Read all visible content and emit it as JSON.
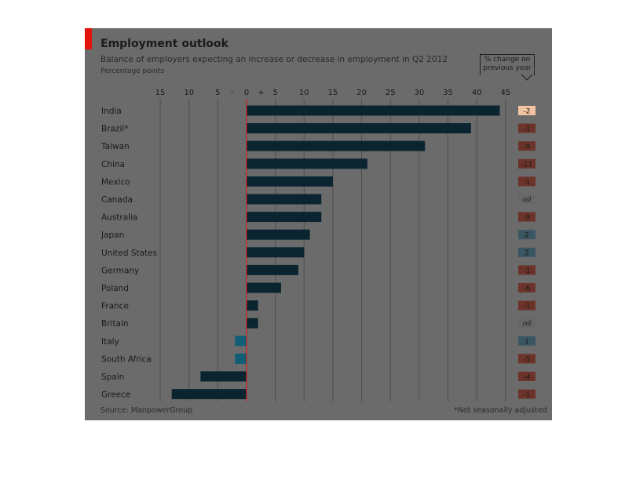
{
  "header": {
    "title": "Employment outlook",
    "subtitle": "Balance of employers expecting an increase or decrease in employment in Q2 2012",
    "unit": "Percentage points",
    "change_label": "% change on previous year"
  },
  "footer": {
    "source": "Source: ManpowerGroup",
    "footnote": "*Not seasonally adjusted"
  },
  "colors": {
    "panel": "#6b6b6b",
    "bar": "#0b2530",
    "bar_negative_highlight": "#0f5e76",
    "accent_red": "#e3120b",
    "badge_negative": "#6b3329",
    "badge_negative_highlight": "#f1c3a0",
    "badge_positive": "#3a5663",
    "badge_nil": "#676767"
  },
  "chart_data": {
    "type": "bar",
    "orientation": "horizontal",
    "xlim": [
      -15,
      45
    ],
    "x_ticks": [
      "15",
      "10",
      "5",
      "-",
      "0",
      "+",
      "5",
      "10",
      "15",
      "20",
      "25",
      "30",
      "35",
      "40",
      "45"
    ],
    "grid": true,
    "categories": [
      "India",
      "Brazil*",
      "Taiwan",
      "China",
      "Mexico",
      "Canada",
      "Australia",
      "Japan",
      "United States",
      "Germany",
      "Poland",
      "France",
      "Britain",
      "Italy",
      "South Africa",
      "Spain",
      "Greece"
    ],
    "values": [
      44,
      39,
      31,
      21,
      15,
      13,
      13,
      11,
      10,
      9,
      6,
      2,
      2,
      -2,
      -2,
      -8,
      -13
    ],
    "change_on_previous_year": [
      "-2",
      "-1",
      "-9",
      "-11",
      "-1",
      "nil",
      "-9",
      "2",
      "2",
      "-1",
      "-6",
      "-1",
      "nil",
      "1",
      "-5",
      "-4",
      "-1"
    ]
  }
}
